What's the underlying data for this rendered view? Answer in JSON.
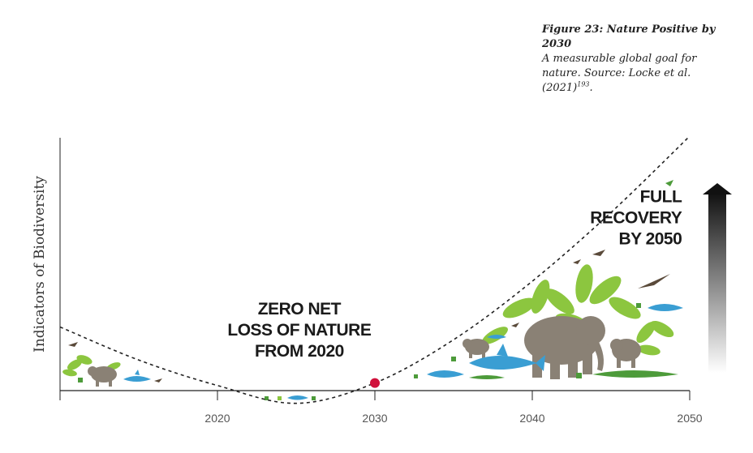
{
  "figure": {
    "title": "Figure 23: Nature Positive by 2030",
    "description": "A measurable global goal for nature. Source: Locke et al. (2021)",
    "reference": "193",
    "end_mark": "."
  },
  "chart_data": {
    "type": "line",
    "title": "",
    "xlabel": "",
    "ylabel": "Indicators of Biodiversity",
    "xlim": [
      2010,
      2050
    ],
    "xticks": [
      2020,
      2030,
      2040,
      2050
    ],
    "x_tick_labels": [
      "2020",
      "2030",
      "2040",
      "2050"
    ],
    "y_ticks_shown": false,
    "grid": false,
    "legend": "none",
    "series": [
      {
        "style": "dashed",
        "color": "#222222",
        "points": [
          {
            "x": 2010,
            "y": 0.25
          },
          {
            "x": 2015,
            "y": 0.12
          },
          {
            "x": 2020,
            "y": 0.02
          },
          {
            "x": 2025,
            "y": -0.05
          },
          {
            "x": 2030,
            "y": 0.03
          },
          {
            "x": 2035,
            "y": 0.2
          },
          {
            "x": 2040,
            "y": 0.43
          },
          {
            "x": 2045,
            "y": 0.7
          },
          {
            "x": 2050,
            "y": 1.0
          }
        ]
      }
    ],
    "highlight_point": {
      "x": 2030,
      "y": 0.03,
      "color": "#d0103a"
    },
    "annotations": [
      {
        "lines": [
          "ZERO NET",
          "LOSS OF NATURE",
          "FROM 2020"
        ],
        "x": 2025.2,
        "y": 0.3
      },
      {
        "lines": [
          "FULL",
          "RECOVERY",
          "BY 2050"
        ],
        "x": 2049.5,
        "y": 0.74
      }
    ],
    "arrow": {
      "direction": "up",
      "gradient_from": "#ffffff",
      "gradient_to": "#111111"
    }
  },
  "colors": {
    "leaf_green": "#8cc63f",
    "elephant_grey": "#8a8175",
    "shark_blue": "#3a9ed3",
    "croc_green": "#4d9b3a",
    "bird_brown": "#5a4a3a"
  }
}
